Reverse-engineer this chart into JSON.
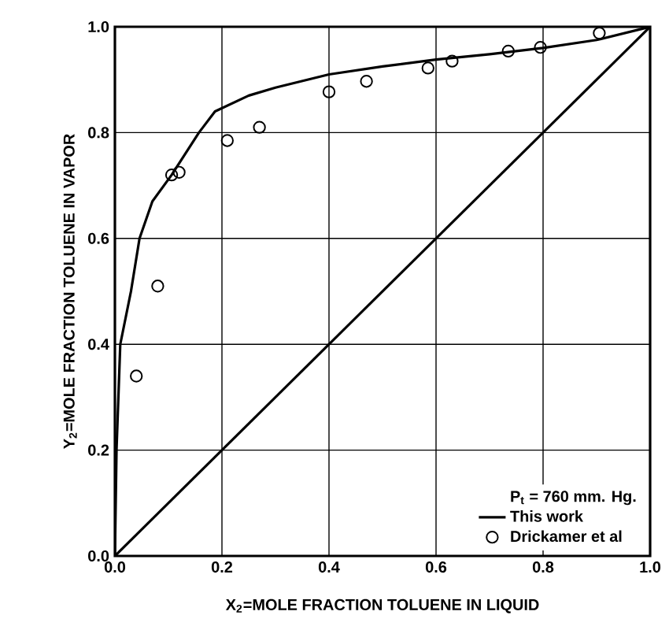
{
  "chart_data": {
    "type": "line",
    "xlabel": "X$_{2}$=MOLE  FRACTION  TOLUENE  IN  LIQUID",
    "ylabel": "Y$_{2}$=MOLE  FRACTION  TOLUENE  IN  VAPOR",
    "legend_title": "P$_{t}$ = 760  mm. Hg.",
    "xlim": [
      0,
      1
    ],
    "ylim": [
      0,
      1
    ],
    "xticks": [
      {
        "value": 0,
        "label": "0.0"
      },
      {
        "value": 0.2,
        "label": "0.2"
      },
      {
        "value": 0.4,
        "label": "0.4"
      },
      {
        "value": 0.6,
        "label": "0.6"
      },
      {
        "value": 0.8,
        "label": "0.8"
      },
      {
        "value": 1,
        "label": "1.0"
      }
    ],
    "yticks": [
      {
        "value": 0,
        "label": "0.0"
      },
      {
        "value": 0.2,
        "label": "0.2"
      },
      {
        "value": 0.4,
        "label": "0.4"
      },
      {
        "value": 0.6,
        "label": "0.6"
      },
      {
        "value": 0.8,
        "label": "0.8"
      },
      {
        "value": 1,
        "label": "1.0"
      }
    ],
    "grid": true,
    "legend": "bottom right",
    "series": [
      {
        "name": "This work",
        "marker": "none",
        "color": "#000000",
        "x": [
          0,
          0.003,
          0.01,
          0.03,
          0.046,
          0.07,
          0.106,
          0.157,
          0.187,
          0.25,
          0.3,
          0.4,
          0.5,
          0.6,
          0.7,
          0.8,
          0.9,
          1
        ],
        "values": [
          0,
          0.2,
          0.4,
          0.5,
          0.6,
          0.67,
          0.72,
          0.8,
          0.84,
          0.87,
          0.885,
          0.91,
          0.925,
          0.938,
          0.948,
          0.96,
          0.975,
          1
        ]
      },
      {
        "name": "Drickamer et al",
        "type": "scatter",
        "marker": "circle",
        "color": "#000000",
        "x": [
          0.04,
          0.08,
          0.106,
          0.12,
          0.21,
          0.27,
          0.4,
          0.47,
          0.585,
          0.63,
          0.735,
          0.795,
          0.905
        ],
        "values": [
          0.34,
          0.51,
          0.72,
          0.725,
          0.785,
          0.81,
          0.877,
          0.897,
          0.922,
          0.935,
          0.954,
          0.961,
          0.988
        ]
      },
      {
        "marker": "none",
        "color": "#000000",
        "x": [
          0,
          1
        ],
        "values": [
          0,
          1
        ]
      }
    ]
  }
}
